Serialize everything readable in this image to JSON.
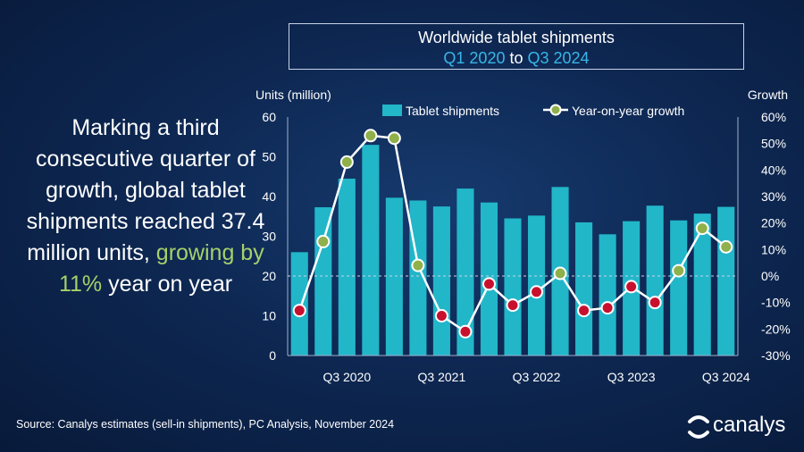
{
  "header": {
    "title": "Worldwide tablet shipments",
    "period_start": "Q1 2020",
    "period_connector": "to",
    "period_end": "Q3 2024"
  },
  "lead": {
    "text_part1": "Marking a third consecutive quarter of growth, global tablet shipments reached 37.4 million units,",
    "text_highlight": "growing by 11%",
    "text_part2": "year on year"
  },
  "footer": {
    "source": "Source: Canalys estimates (sell-in shipments), PC Analysis, November 2024",
    "brand": "canalys"
  },
  "colors": {
    "bar": "#22b6c9",
    "line": "#ffffff",
    "marker_growth": "#8fb04a",
    "marker_decline": "#c8102e",
    "accent_blue": "#38b6e8",
    "accent_green": "#a6d16a"
  },
  "chart_data": {
    "type": "bar",
    "categories": [
      "Q1 2020",
      "Q2 2020",
      "Q3 2020",
      "Q4 2020",
      "Q1 2021",
      "Q2 2021",
      "Q3 2021",
      "Q4 2021",
      "Q1 2022",
      "Q2 2022",
      "Q3 2022",
      "Q4 2022",
      "Q1 2023",
      "Q2 2023",
      "Q3 2023",
      "Q4 2023",
      "Q1 2024",
      "Q2 2024",
      "Q3 2024"
    ],
    "x_tick_labels": [
      "Q3 2020",
      "Q3 2021",
      "Q3 2022",
      "Q3 2023",
      "Q3 2024"
    ],
    "series": [
      {
        "name": "Tablet shipments",
        "axis": "left",
        "type": "bar",
        "values": [
          26.0,
          37.3,
          44.5,
          53.0,
          39.7,
          39.0,
          37.5,
          42.0,
          38.5,
          34.5,
          35.2,
          42.4,
          33.5,
          30.5,
          33.8,
          37.7,
          34.0,
          35.7,
          37.4
        ]
      },
      {
        "name": "Year-on-year growth",
        "axis": "right",
        "type": "line",
        "values": [
          -13,
          13,
          43,
          53,
          52,
          4,
          -15,
          -21,
          -3,
          -11,
          -6,
          1,
          -13,
          -12,
          -4,
          -10,
          2,
          18,
          11
        ]
      }
    ],
    "ylabel_left": "Units (million)",
    "ylabel_right": "Growth",
    "ylim_left": [
      0,
      60
    ],
    "yticks_left": [
      0,
      10,
      20,
      30,
      40,
      50,
      60
    ],
    "ylim_right": [
      -30,
      60
    ],
    "yticks_right": [
      "-30%",
      "-20%",
      "-10%",
      "0%",
      "10%",
      "20%",
      "30%",
      "40%",
      "50%",
      "60%"
    ],
    "legend_position": "top",
    "grid": false
  }
}
